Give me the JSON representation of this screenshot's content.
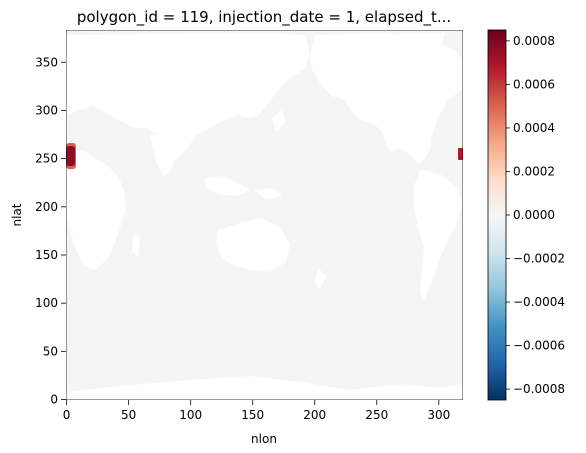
{
  "chart_data": {
    "type": "heatmap",
    "title": "polygon_id = 119, injection_date = 1, elapsed_t...",
    "xlabel": "nlon",
    "ylabel": "nlat",
    "xlim": [
      -0.5,
      319.5
    ],
    "ylim": [
      -0.5,
      383.5
    ],
    "x_ticks": [
      0,
      50,
      100,
      150,
      200,
      250,
      300
    ],
    "y_ticks": [
      0,
      50,
      100,
      150,
      200,
      250,
      300,
      350
    ],
    "x_tick_labels": [
      "0",
      "50",
      "100",
      "150",
      "200",
      "250",
      "300"
    ],
    "y_tick_labels": [
      "0",
      "50",
      "100",
      "150",
      "200",
      "250",
      "300",
      "350"
    ],
    "colormap": "RdBu_r",
    "colorbar": {
      "vmin": -0.00085,
      "vmax": 0.00085,
      "ticks": [
        -0.0008,
        -0.0006,
        -0.0004,
        -0.0002,
        0.0,
        0.0002,
        0.0004,
        0.0006,
        0.0008
      ],
      "tick_labels": [
        "−0.0008",
        "−0.0006",
        "−0.0004",
        "−0.0002",
        "0.0000",
        "0.0002",
        "0.0004",
        "0.0006",
        "0.0008"
      ]
    },
    "ocean_value": 0.0,
    "land_mask": "white (NaN)",
    "hotspots": [
      {
        "x_range": [
          0,
          8
        ],
        "y_range": [
          243,
          264
        ],
        "value": 0.00085
      },
      {
        "x_range": [
          316,
          319
        ],
        "y_range": [
          250,
          259
        ],
        "value": 0.0008
      }
    ]
  }
}
